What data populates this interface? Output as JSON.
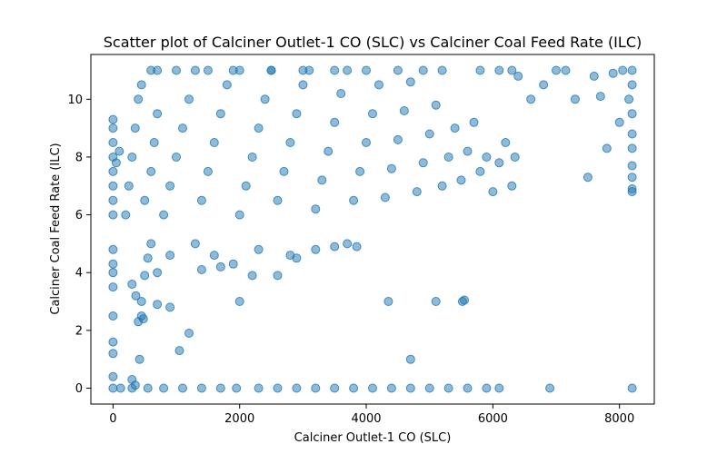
{
  "chart_data": {
    "type": "scatter",
    "title": "Scatter plot of Calciner Outlet-1 CO (SLC) vs Calciner Coal Feed Rate (ILC)",
    "xlabel": "Calciner Outlet-1 CO (SLC)",
    "ylabel": "Calciner Coal Feed Rate (ILC)",
    "xlim": [
      -350,
      8550
    ],
    "ylim": [
      -0.55,
      11.55
    ],
    "xticks": [
      0,
      2000,
      4000,
      6000,
      8000
    ],
    "yticks": [
      0,
      2,
      4,
      6,
      8,
      10
    ],
    "grid": false,
    "legend": "none",
    "series_color": "#1f77b4",
    "marker_alpha": 0.5,
    "points": [
      [
        0,
        0.0
      ],
      [
        120,
        0.0
      ],
      [
        300,
        0.0
      ],
      [
        550,
        0.0
      ],
      [
        800,
        0.0
      ],
      [
        1100,
        0.0
      ],
      [
        1400,
        0.0
      ],
      [
        1700,
        0.0
      ],
      [
        1950,
        0.0
      ],
      [
        2300,
        0.0
      ],
      [
        2600,
        0.0
      ],
      [
        2900,
        0.0
      ],
      [
        3200,
        0.0
      ],
      [
        3500,
        0.0
      ],
      [
        3800,
        0.0
      ],
      [
        4100,
        0.0
      ],
      [
        4400,
        0.0
      ],
      [
        4700,
        0.0
      ],
      [
        5000,
        0.0
      ],
      [
        5300,
        0.0
      ],
      [
        5600,
        0.0
      ],
      [
        5900,
        0.0
      ],
      [
        6100,
        0.0
      ],
      [
        6900,
        0.0
      ],
      [
        8200,
        0.0
      ],
      [
        0,
        0.4
      ],
      [
        0,
        1.2
      ],
      [
        0,
        1.6
      ],
      [
        0,
        2.5
      ],
      [
        0,
        3.5
      ],
      [
        0,
        4.0
      ],
      [
        0,
        4.3
      ],
      [
        0,
        4.8
      ],
      [
        300,
        0.3
      ],
      [
        350,
        0.1
      ],
      [
        420,
        1.0
      ],
      [
        400,
        2.3
      ],
      [
        450,
        2.5
      ],
      [
        480,
        2.4
      ],
      [
        360,
        3.2
      ],
      [
        300,
        3.6
      ],
      [
        450,
        3.0
      ],
      [
        500,
        3.9
      ],
      [
        700,
        2.9
      ],
      [
        900,
        2.8
      ],
      [
        1050,
        1.3
      ],
      [
        1200,
        1.9
      ],
      [
        700,
        4.0
      ],
      [
        550,
        4.5
      ],
      [
        600,
        5.0
      ],
      [
        900,
        4.6
      ],
      [
        2000,
        3.0
      ],
      [
        4350,
        3.0
      ],
      [
        4700,
        1.0
      ],
      [
        5100,
        3.0
      ],
      [
        5550,
        3.05
      ],
      [
        5520,
        3.0
      ],
      [
        1400,
        4.1
      ],
      [
        1700,
        4.2
      ],
      [
        1900,
        4.3
      ],
      [
        2200,
        3.9
      ],
      [
        2600,
        3.9
      ],
      [
        2900,
        4.5
      ],
      [
        3200,
        4.8
      ],
      [
        3500,
        4.9
      ],
      [
        3700,
        5.0
      ],
      [
        3850,
        4.9
      ],
      [
        1300,
        5.0
      ],
      [
        1600,
        4.6
      ],
      [
        2300,
        4.8
      ],
      [
        2800,
        4.6
      ],
      [
        0,
        6.0
      ],
      [
        0,
        6.5
      ],
      [
        0,
        7.0
      ],
      [
        0,
        7.5
      ],
      [
        0,
        8.0
      ],
      [
        0,
        8.5
      ],
      [
        0,
        9.0
      ],
      [
        0,
        9.3
      ],
      [
        50,
        7.8
      ],
      [
        100,
        8.2
      ],
      [
        200,
        6.0
      ],
      [
        250,
        7.0
      ],
      [
        300,
        8.0
      ],
      [
        350,
        9.0
      ],
      [
        400,
        10.0
      ],
      [
        450,
        10.5
      ],
      [
        500,
        6.5
      ],
      [
        600,
        7.5
      ],
      [
        650,
        8.5
      ],
      [
        700,
        9.5
      ],
      [
        800,
        6.0
      ],
      [
        900,
        7.0
      ],
      [
        1000,
        8.0
      ],
      [
        1100,
        9.0
      ],
      [
        1200,
        10.0
      ],
      [
        1300,
        11.0
      ],
      [
        1400,
        6.5
      ],
      [
        1500,
        7.5
      ],
      [
        1600,
        8.5
      ],
      [
        1700,
        9.5
      ],
      [
        1800,
        10.5
      ],
      [
        1900,
        11.0
      ],
      [
        2000,
        6.0
      ],
      [
        2100,
        7.0
      ],
      [
        2200,
        8.0
      ],
      [
        2300,
        9.0
      ],
      [
        2400,
        10.0
      ],
      [
        2500,
        11.0
      ],
      [
        2600,
        6.5
      ],
      [
        2700,
        7.5
      ],
      [
        2800,
        8.5
      ],
      [
        2900,
        9.5
      ],
      [
        3000,
        10.5
      ],
      [
        3100,
        11.0
      ],
      [
        3200,
        6.2
      ],
      [
        3300,
        7.2
      ],
      [
        3400,
        8.2
      ],
      [
        3500,
        9.2
      ],
      [
        3600,
        10.2
      ],
      [
        3700,
        11.0
      ],
      [
        3800,
        6.5
      ],
      [
        3900,
        7.5
      ],
      [
        4000,
        8.5
      ],
      [
        4100,
        9.5
      ],
      [
        4200,
        10.5
      ],
      [
        4300,
        6.6
      ],
      [
        4400,
        7.6
      ],
      [
        4500,
        8.6
      ],
      [
        4600,
        9.6
      ],
      [
        4700,
        10.6
      ],
      [
        4800,
        6.8
      ],
      [
        4900,
        7.8
      ],
      [
        5000,
        8.8
      ],
      [
        5100,
        9.8
      ],
      [
        5200,
        7.0
      ],
      [
        5300,
        8.0
      ],
      [
        5400,
        9.0
      ],
      [
        5500,
        7.2
      ],
      [
        5600,
        8.2
      ],
      [
        5700,
        9.2
      ],
      [
        5800,
        7.5
      ],
      [
        5900,
        8.0
      ],
      [
        6000,
        6.8
      ],
      [
        6100,
        7.8
      ],
      [
        6200,
        8.5
      ],
      [
        6300,
        7.0
      ],
      [
        6350,
        8.0
      ],
      [
        600,
        11.0
      ],
      [
        700,
        11.0
      ],
      [
        1000,
        11.0
      ],
      [
        1500,
        11.0
      ],
      [
        2000,
        11.0
      ],
      [
        2500,
        11.0
      ],
      [
        3000,
        11.0
      ],
      [
        3500,
        11.0
      ],
      [
        4000,
        11.0
      ],
      [
        4500,
        11.0
      ],
      [
        4900,
        11.0
      ],
      [
        5200,
        11.0
      ],
      [
        5800,
        11.0
      ],
      [
        6100,
        11.0
      ],
      [
        6300,
        11.0
      ],
      [
        6400,
        10.8
      ],
      [
        6600,
        10.0
      ],
      [
        6800,
        10.5
      ],
      [
        7000,
        11.0
      ],
      [
        7150,
        11.0
      ],
      [
        7300,
        10.0
      ],
      [
        7500,
        7.3
      ],
      [
        7600,
        10.8
      ],
      [
        7700,
        10.1
      ],
      [
        7800,
        8.3
      ],
      [
        7900,
        10.9
      ],
      [
        8000,
        9.2
      ],
      [
        8050,
        11.0
      ],
      [
        8150,
        10.0
      ],
      [
        8200,
        11.0
      ],
      [
        8200,
        10.5
      ],
      [
        8200,
        9.5
      ],
      [
        8200,
        8.8
      ],
      [
        8200,
        8.3
      ],
      [
        8200,
        7.7
      ],
      [
        8200,
        7.3
      ],
      [
        8200,
        6.9
      ],
      [
        8200,
        6.8
      ]
    ]
  }
}
